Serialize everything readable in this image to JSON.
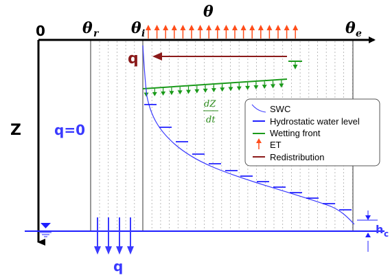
{
  "labels": {
    "origin": "0",
    "theta": "θ",
    "theta_r": "θ",
    "theta_r_sub": "r",
    "theta_i": "θ",
    "theta_i_sub": "i",
    "theta_e": "θ",
    "theta_e_sub": "e",
    "z_axis": "Z",
    "q_top": "q",
    "q_zero": "q=0",
    "q_bottom": "q",
    "h_c": "h",
    "h_c_sub": "c",
    "dz_num": "dZ",
    "dz_den": "dt"
  },
  "legend": {
    "items": [
      {
        "label": "SWC",
        "color": "#3a3aff",
        "symbol": "curve"
      },
      {
        "label": "Hydrostatic water level",
        "color": "#1e1eff",
        "symbol": "line"
      },
      {
        "label": "Wetting front",
        "color": "#1a9a1a",
        "symbol": "line"
      },
      {
        "label": "ET",
        "color": "#ff4d1a",
        "symbol": "arrow"
      },
      {
        "label": "Redistribution",
        "color": "#8b1a1a",
        "symbol": "line"
      }
    ]
  },
  "colors": {
    "axis": "#000000",
    "swc": "#3a3aff",
    "hydrostatic": "#1e1eff",
    "wetting": "#1a9a1a",
    "et": "#ff4d1a",
    "redistribution": "#8b1a1a",
    "grid_solid": "#777777",
    "grid_dashed": "#aaaaaa",
    "q_text": "#8b1a1a",
    "q_zero": "#3a3aff"
  }
}
